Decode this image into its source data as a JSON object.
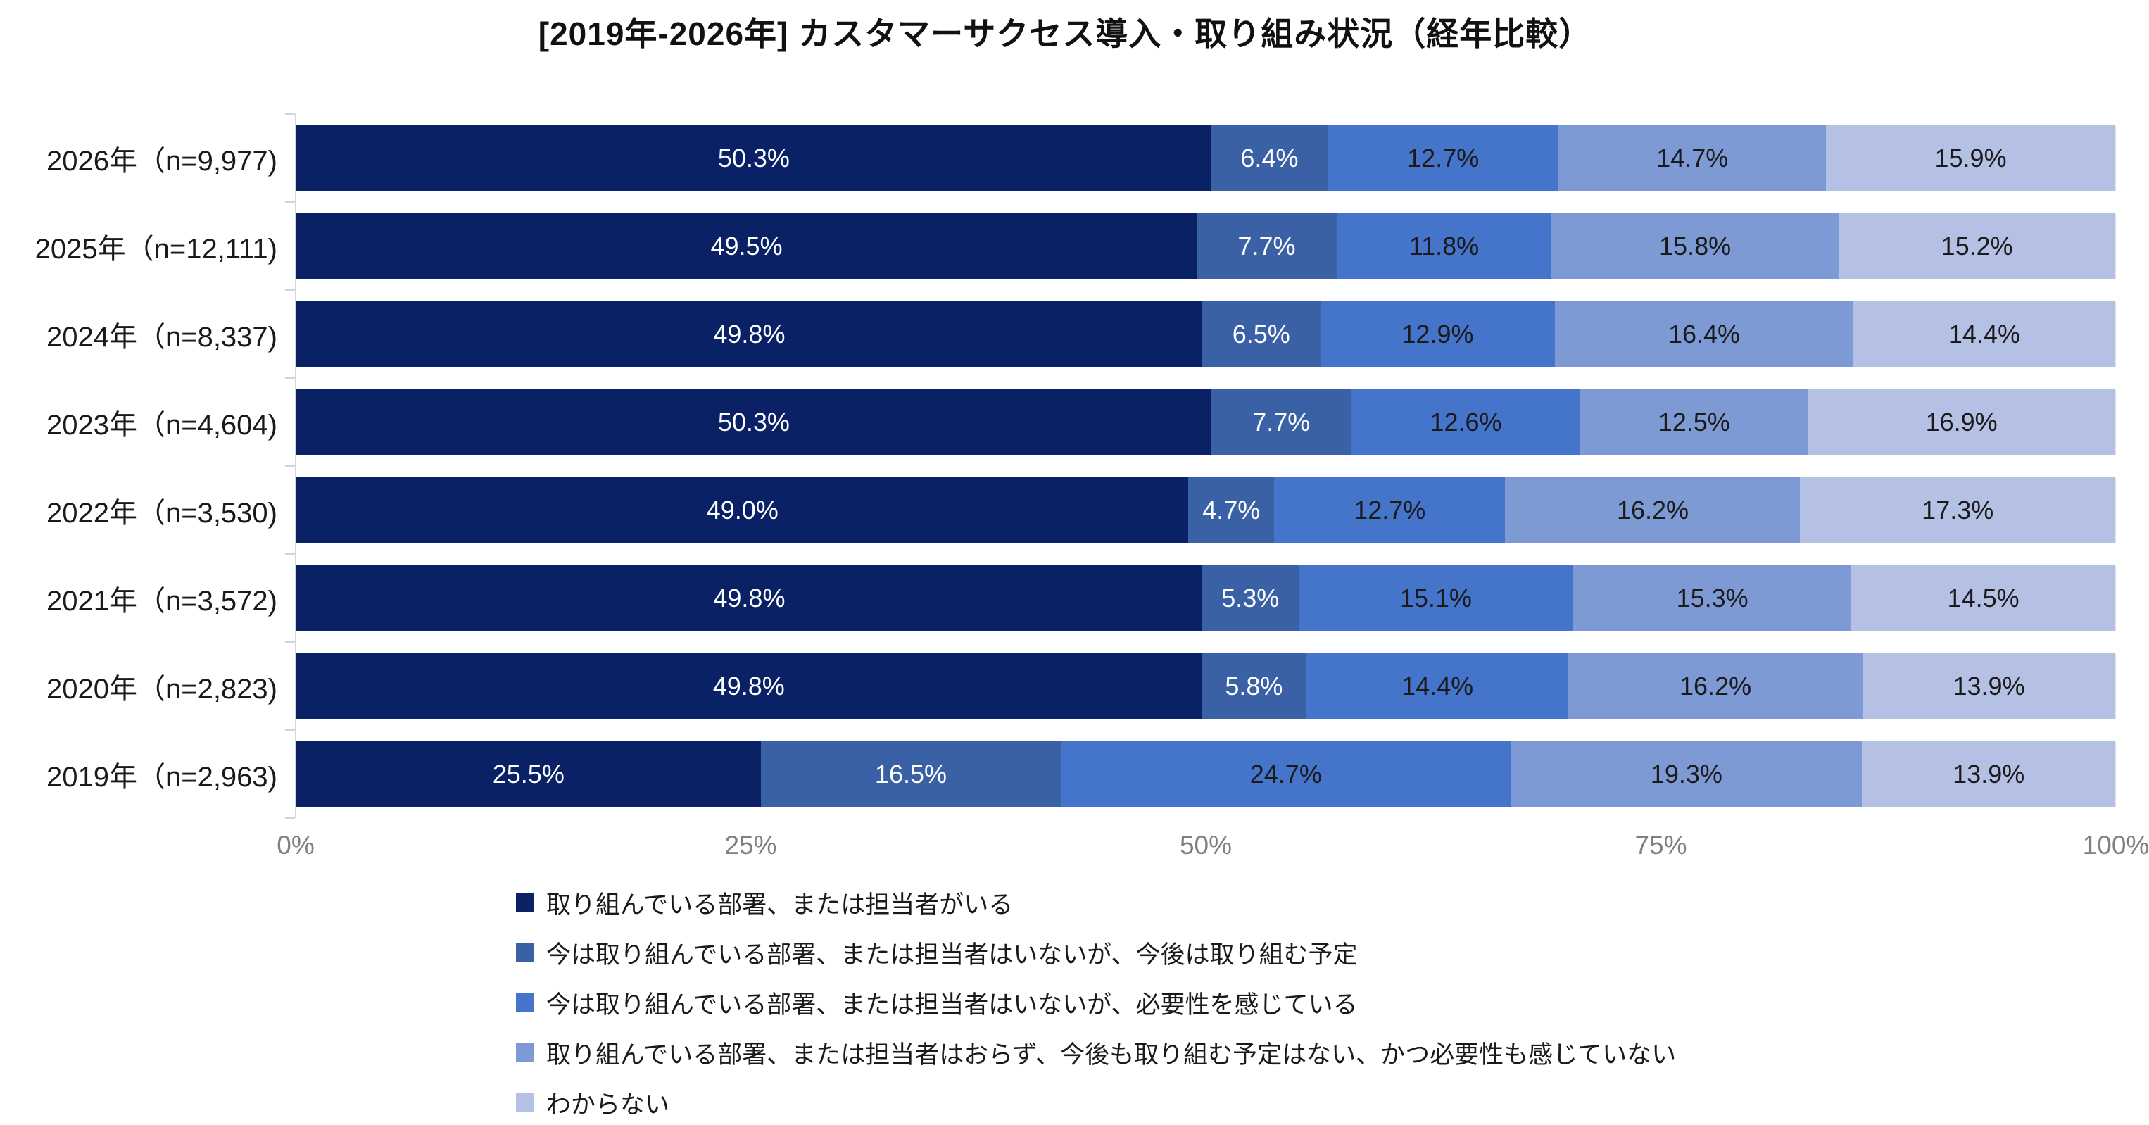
{
  "chart_data": {
    "type": "bar",
    "orientation": "horizontal-stacked",
    "title": "[2019年-2026年] カスタマーサクセス導入・取り組み状況（経年比較）",
    "categories": [
      "2026年（n=9,977)",
      "2025年（n=12,111)",
      "2024年（n=8,337)",
      "2023年（n=4,604)",
      "2022年（n=3,530)",
      "2021年（n=3,572)",
      "2020年（n=2,823)",
      "2019年（n=2,963)"
    ],
    "series": [
      {
        "name": "取り組んでいる部署、または担当者がいる",
        "color": "#0A2265",
        "label_color": "#ffffff",
        "values": [
          50.3,
          49.5,
          49.8,
          50.3,
          49.0,
          49.8,
          49.8,
          25.5
        ]
      },
      {
        "name": "今は取り組んでいる部署、または担当者はいないが、今後は取り組む予定",
        "color": "#3A60A5",
        "label_color": "#ffffff",
        "values": [
          6.4,
          7.7,
          6.5,
          7.7,
          4.7,
          5.3,
          5.8,
          16.5
        ]
      },
      {
        "name": "今は取り組んでいる部署、または担当者はいないが、必要性を感じている",
        "color": "#4574CB",
        "label_color": "#1a1a1a",
        "values": [
          12.7,
          11.8,
          12.9,
          12.6,
          12.7,
          15.1,
          14.4,
          24.7
        ]
      },
      {
        "name": "取り組んでいる部署、または担当者はおらず、今後も取り組む予定はない、かつ必要性も感じていない",
        "color": "#7D9AD5",
        "label_color": "#1a1a1a",
        "values": [
          14.7,
          15.8,
          16.4,
          12.5,
          16.2,
          15.3,
          16.2,
          19.3
        ]
      },
      {
        "name": "わからない",
        "color": "#B4C0E4",
        "label_color": "#1a1a1a",
        "values": [
          15.9,
          15.2,
          14.4,
          16.9,
          17.3,
          14.5,
          13.9,
          13.9
        ]
      }
    ],
    "x_axis": {
      "min": 0,
      "max": 100,
      "tick_labels": [
        "0%",
        "25%",
        "50%",
        "75%",
        "100%"
      ],
      "tick_positions": [
        0,
        25,
        50,
        75,
        100
      ]
    },
    "grid": false,
    "legend_position": "bottom-left",
    "axis_color": "#d6d6d6",
    "tick_label_color": "#808080"
  }
}
